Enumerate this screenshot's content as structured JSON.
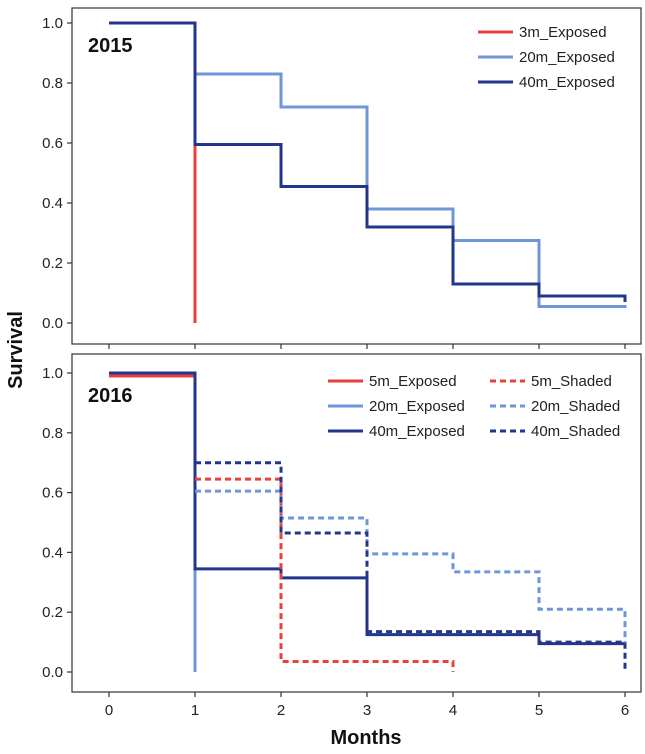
{
  "shared_axes": {
    "ylabel": "Survival",
    "xlabel": "Months"
  },
  "chart_data": [
    {
      "type": "line",
      "step": "post",
      "title": "2015",
      "xlim": [
        0,
        6
      ],
      "ylim": [
        0,
        1
      ],
      "x_ticks": [
        0,
        1,
        2,
        3,
        4,
        5,
        6
      ],
      "y_ticks": [
        "0.0",
        "0.2",
        "0.4",
        "0.6",
        "0.8",
        "1.0"
      ],
      "x_tick_labels_shown": false,
      "legend": {
        "placement": "top-right",
        "columns": 1
      },
      "series": [
        {
          "name": "3m_Exposed",
          "color": "#e8403a",
          "dash": "solid",
          "x": [
            0,
            1,
            1
          ],
          "y": [
            1.0,
            1.0,
            0.0
          ]
        },
        {
          "name": "20m_Exposed",
          "color": "#6f96d8",
          "dash": "solid",
          "x": [
            0,
            1,
            2,
            3,
            4,
            5,
            6
          ],
          "y": [
            1.0,
            0.83,
            0.72,
            0.38,
            0.275,
            0.055,
            0.05
          ]
        },
        {
          "name": "40m_Exposed",
          "color": "#24358c",
          "dash": "solid",
          "x": [
            0,
            1,
            2,
            3,
            4,
            5,
            6
          ],
          "y": [
            1.0,
            0.595,
            0.455,
            0.32,
            0.13,
            0.09,
            0.07
          ]
        }
      ]
    },
    {
      "type": "line",
      "step": "post",
      "title": "2016",
      "xlim": [
        0,
        6
      ],
      "ylim": [
        0,
        1
      ],
      "x_ticks": [
        0,
        1,
        2,
        3,
        4,
        5,
        6
      ],
      "x_tick_labels": [
        "0",
        "1",
        "2",
        "3",
        "4",
        "5",
        "6"
      ],
      "y_ticks": [
        "0.0",
        "0.2",
        "0.4",
        "0.6",
        "0.8",
        "1.0"
      ],
      "x_tick_labels_shown": true,
      "legend": {
        "placement": "top-right",
        "columns": 2
      },
      "series": [
        {
          "name": "5m_Exposed",
          "color": "#e8403a",
          "dash": "solid",
          "x": [
            0,
            1,
            1
          ],
          "y": [
            0.99,
            0.99,
            0.0
          ]
        },
        {
          "name": "20m_Exposed",
          "color": "#6f96d8",
          "dash": "solid",
          "x": [
            0,
            1,
            1
          ],
          "y": [
            1.0,
            1.0,
            0.0
          ]
        },
        {
          "name": "40m_Exposed",
          "color": "#24358c",
          "dash": "solid",
          "x": [
            0,
            1,
            2,
            3,
            5,
            6
          ],
          "y": [
            1.0,
            0.345,
            0.315,
            0.125,
            0.095,
            0.095
          ]
        },
        {
          "name": "5m_Shaded",
          "color": "#e8403a",
          "dash": "dashed",
          "x": [
            1,
            2,
            4
          ],
          "y": [
            0.645,
            0.035,
            0.0
          ]
        },
        {
          "name": "20m_Shaded",
          "color": "#6f96d8",
          "dash": "dashed",
          "x": [
            1,
            2,
            3,
            4,
            5,
            6
          ],
          "y": [
            0.605,
            0.515,
            0.395,
            0.335,
            0.21,
            0.09
          ]
        },
        {
          "name": "40m_Shaded",
          "color": "#24358c",
          "dash": "dashed",
          "x": [
            1,
            2,
            3,
            5,
            6
          ],
          "y": [
            0.7,
            0.465,
            0.135,
            0.1,
            0.01
          ]
        }
      ]
    }
  ]
}
